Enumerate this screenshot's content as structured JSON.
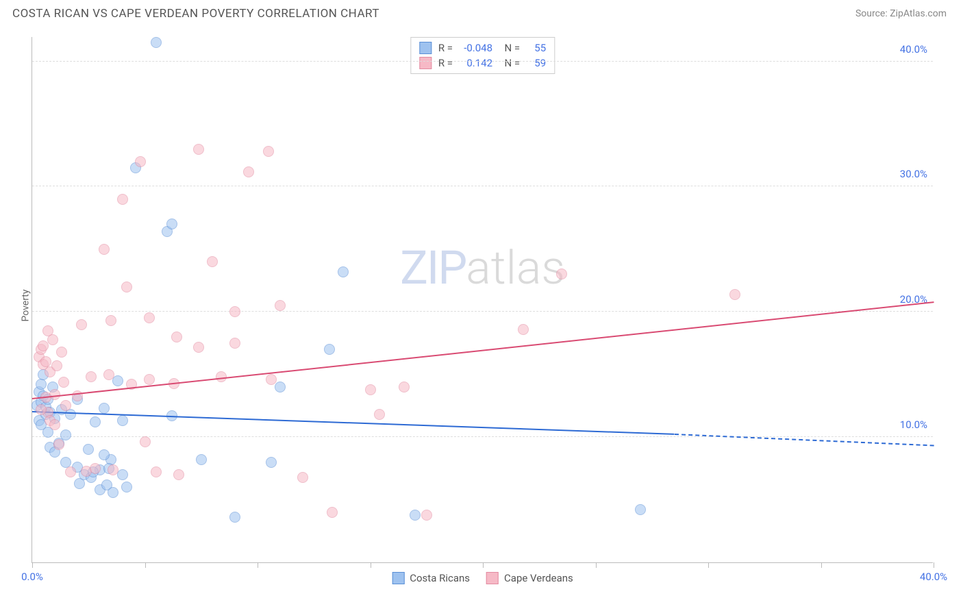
{
  "header": {
    "title": "COSTA RICAN VS CAPE VERDEAN POVERTY CORRELATION CHART",
    "source_prefix": "Source: ",
    "source": "ZipAtlas.com"
  },
  "watermark": {
    "zip": "ZIP",
    "atlas": "atlas"
  },
  "chart": {
    "type": "scatter",
    "ylabel": "Poverty",
    "xlim": [
      0,
      40
    ],
    "ylim": [
      0,
      42
    ],
    "xtick_positions": [
      0,
      5,
      10,
      15,
      20,
      25,
      30,
      35,
      40
    ],
    "xtick_labels": {
      "0": "0.0%",
      "40": "40.0%"
    },
    "ytick_labels": [
      {
        "v": 10,
        "label": "10.0%"
      },
      {
        "v": 20,
        "label": "20.0%"
      },
      {
        "v": 30,
        "label": "30.0%"
      },
      {
        "v": 40,
        "label": "40.0%"
      }
    ],
    "grid_color": "#dddddd",
    "axis_color": "#bbbbbb",
    "label_color": "#4472e4",
    "point_radius": 8,
    "point_opacity": 0.55,
    "series": [
      {
        "name": "Costa Ricans",
        "fill": "#9ec2ef",
        "stroke": "#5a8fd6",
        "trend_color": "#2d6ad4",
        "r_value": "-0.048",
        "n_value": "55",
        "trend": {
          "x1": 0,
          "y1": 12.0,
          "x2": 28.5,
          "y2": 10.2,
          "dash_to_x": 40,
          "dash_to_y": 9.3
        },
        "points": [
          [
            0.2,
            12.5
          ],
          [
            0.3,
            13.6
          ],
          [
            0.3,
            11.3
          ],
          [
            0.4,
            12.8
          ],
          [
            0.4,
            14.2
          ],
          [
            0.4,
            11.0
          ],
          [
            0.5,
            13.3
          ],
          [
            0.5,
            15.0
          ],
          [
            0.6,
            11.8
          ],
          [
            0.6,
            12.4
          ],
          [
            0.7,
            10.4
          ],
          [
            0.7,
            13.0
          ],
          [
            0.8,
            9.2
          ],
          [
            0.8,
            12.0
          ],
          [
            0.9,
            14.0
          ],
          [
            1.0,
            8.8
          ],
          [
            1.0,
            11.5
          ],
          [
            1.2,
            9.5
          ],
          [
            1.3,
            12.2
          ],
          [
            1.5,
            10.2
          ],
          [
            1.5,
            8.0
          ],
          [
            1.7,
            11.8
          ],
          [
            2.0,
            13.0
          ],
          [
            2.1,
            6.3
          ],
          [
            2.3,
            7.0
          ],
          [
            2.5,
            9.0
          ],
          [
            2.6,
            6.8
          ],
          [
            2.8,
            11.2
          ],
          [
            3.0,
            5.8
          ],
          [
            3.0,
            7.4
          ],
          [
            3.2,
            12.3
          ],
          [
            3.3,
            6.2
          ],
          [
            3.5,
            8.2
          ],
          [
            3.6,
            5.6
          ],
          [
            3.8,
            14.5
          ],
          [
            4.0,
            11.3
          ],
          [
            4.2,
            6.0
          ],
          [
            4.6,
            31.5
          ],
          [
            5.5,
            41.5
          ],
          [
            6.0,
            26.4
          ],
          [
            6.2,
            27.0
          ],
          [
            6.2,
            11.7
          ],
          [
            7.5,
            8.2
          ],
          [
            9.0,
            3.6
          ],
          [
            10.6,
            8.0
          ],
          [
            11.0,
            14.0
          ],
          [
            13.2,
            17.0
          ],
          [
            13.8,
            23.2
          ],
          [
            17.0,
            3.8
          ],
          [
            27.0,
            4.2
          ],
          [
            2.0,
            7.6
          ],
          [
            2.7,
            7.2
          ],
          [
            3.4,
            7.5
          ],
          [
            3.2,
            8.6
          ],
          [
            4.0,
            7.0
          ]
        ]
      },
      {
        "name": "Cape Verdeans",
        "fill": "#f6b9c6",
        "stroke": "#e38aa0",
        "trend_color": "#d94a72",
        "r_value": "0.142",
        "n_value": "59",
        "trend": {
          "x1": 0,
          "y1": 13.0,
          "x2": 40,
          "y2": 20.7,
          "dash_to_x": null,
          "dash_to_y": null
        },
        "points": [
          [
            0.3,
            16.4
          ],
          [
            0.4,
            17.0
          ],
          [
            0.5,
            15.8
          ],
          [
            0.5,
            17.3
          ],
          [
            0.6,
            16.0
          ],
          [
            0.6,
            13.2
          ],
          [
            0.7,
            18.5
          ],
          [
            0.7,
            12.0
          ],
          [
            0.8,
            15.2
          ],
          [
            0.8,
            11.3
          ],
          [
            0.9,
            17.8
          ],
          [
            1.0,
            13.4
          ],
          [
            1.1,
            15.7
          ],
          [
            1.2,
            9.4
          ],
          [
            1.3,
            16.8
          ],
          [
            1.5,
            12.5
          ],
          [
            1.7,
            7.2
          ],
          [
            2.2,
            19.0
          ],
          [
            2.4,
            7.3
          ],
          [
            2.6,
            14.8
          ],
          [
            2.8,
            7.5
          ],
          [
            3.2,
            25.0
          ],
          [
            3.4,
            15.0
          ],
          [
            3.5,
            19.3
          ],
          [
            3.6,
            7.4
          ],
          [
            4.0,
            29.0
          ],
          [
            4.2,
            22.0
          ],
          [
            4.4,
            14.2
          ],
          [
            4.8,
            32.0
          ],
          [
            5.0,
            9.6
          ],
          [
            5.2,
            19.5
          ],
          [
            5.2,
            14.6
          ],
          [
            5.5,
            7.2
          ],
          [
            6.3,
            14.3
          ],
          [
            6.4,
            18.0
          ],
          [
            6.5,
            7.0
          ],
          [
            7.4,
            17.2
          ],
          [
            7.4,
            33.0
          ],
          [
            8.0,
            24.0
          ],
          [
            8.4,
            14.8
          ],
          [
            9.0,
            17.5
          ],
          [
            9.0,
            20.0
          ],
          [
            9.6,
            31.2
          ],
          [
            10.5,
            32.8
          ],
          [
            10.6,
            14.6
          ],
          [
            11.0,
            20.5
          ],
          [
            12.0,
            6.8
          ],
          [
            13.3,
            4.0
          ],
          [
            15.0,
            13.8
          ],
          [
            15.4,
            11.8
          ],
          [
            16.5,
            14.0
          ],
          [
            17.5,
            3.8
          ],
          [
            21.8,
            18.6
          ],
          [
            23.5,
            23.0
          ],
          [
            31.2,
            21.4
          ],
          [
            0.4,
            12.2
          ],
          [
            1.0,
            11.0
          ],
          [
            1.4,
            14.4
          ],
          [
            2.0,
            13.3
          ]
        ]
      }
    ],
    "legend": [
      {
        "label": "Costa Ricans",
        "fill": "#9ec2ef",
        "stroke": "#5a8fd6"
      },
      {
        "label": "Cape Verdeans",
        "fill": "#f6b9c6",
        "stroke": "#e38aa0"
      }
    ]
  }
}
